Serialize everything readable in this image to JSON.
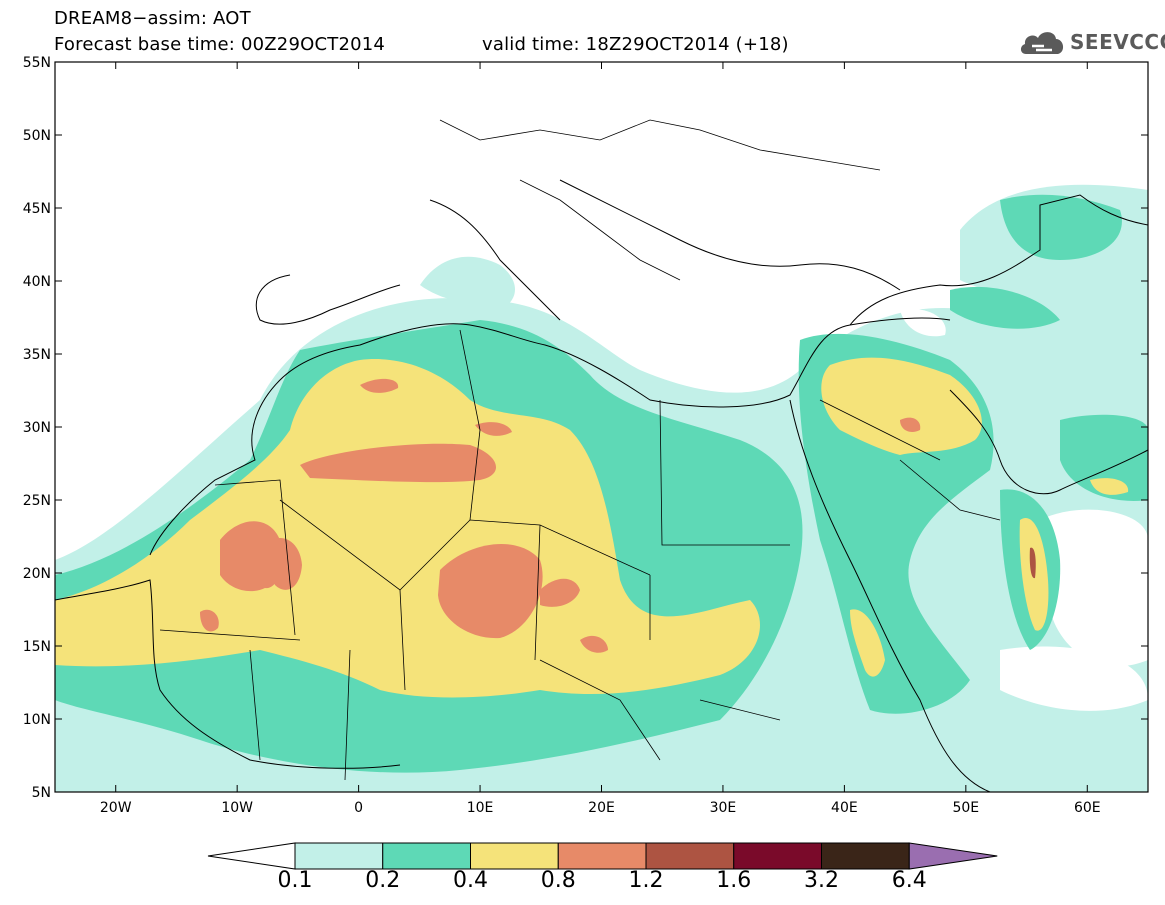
{
  "title": {
    "line1": "DREAM8−assim: AOT",
    "line2": "Forecast base time: 00Z29OCT2014",
    "line2b": "valid time: 18Z29OCT2014 (+18)"
  },
  "logo": {
    "text": "SEEVCCC",
    "icon": "cloud-icon"
  },
  "map": {
    "lat_labels": [
      "55N",
      "50N",
      "45N",
      "40N",
      "35N",
      "30N",
      "25N",
      "20N",
      "15N",
      "10N",
      "5N"
    ],
    "lon_labels": [
      "20W",
      "10W",
      "0",
      "10E",
      "20E",
      "30E",
      "40E",
      "50E",
      "60E"
    ],
    "lat_range": [
      5,
      55
    ],
    "lon_range": [
      -25,
      65
    ]
  },
  "colorbar": {
    "labels": [
      "0.1",
      "0.2",
      "0.4",
      "0.8",
      "1.2",
      "1.6",
      "3.2",
      "6.4"
    ],
    "colors": [
      "#ffffff",
      "#c2f0e8",
      "#5ed9b6",
      "#f5e37a",
      "#e78a68",
      "#ad5442",
      "#7a0a2a",
      "#3a2518",
      "#9a6eb0"
    ]
  }
}
